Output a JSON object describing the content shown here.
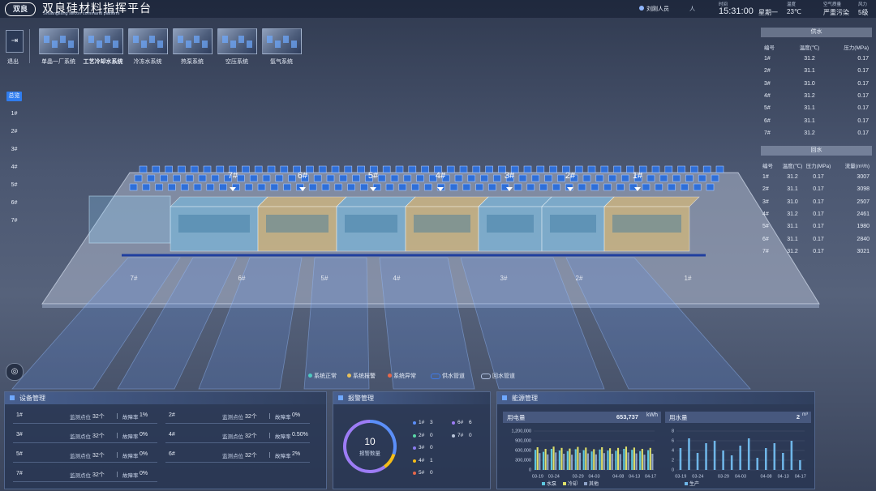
{
  "header": {
    "logo": "双良",
    "title": "双良硅材料指挥平台",
    "subtitle": "Shuangliang silicon command platform",
    "user": "刘刚人员",
    "user_suffix": "人",
    "time_label": "时间",
    "time": "15:31:00",
    "weekday": "星期一",
    "temp_label": "温度",
    "temp": "23℃",
    "air_label": "空气质量",
    "air": "严重污染",
    "wind_label": "风力",
    "wind": "5级"
  },
  "nav": {
    "exit": "退出",
    "systems": [
      "单晶一厂系统",
      "工艺冷却水系统",
      "冷冻水系统",
      "热泵系统",
      "空压系统",
      "氩气系统"
    ],
    "tabs": [
      "总览",
      "1#",
      "2#",
      "3#",
      "4#",
      "5#",
      "6#",
      "7#"
    ]
  },
  "supply": {
    "title": "供水",
    "columns": [
      "编号",
      "温度(℃)",
      "压力(MPa)"
    ],
    "rows": [
      [
        "1#",
        "31.2",
        "0.17"
      ],
      [
        "2#",
        "31.1",
        "0.17"
      ],
      [
        "3#",
        "31.0",
        "0.17"
      ],
      [
        "4#",
        "31.2",
        "0.17"
      ],
      [
        "5#",
        "31.1",
        "0.17"
      ],
      [
        "6#",
        "31.1",
        "0.17"
      ],
      [
        "7#",
        "31.2",
        "0.17"
      ]
    ]
  },
  "return": {
    "title": "回水",
    "columns": [
      "编号",
      "温度(℃)",
      "压力(MPa)",
      "流量(m³/h)"
    ],
    "rows": [
      [
        "1#",
        "31.2",
        "0.17",
        "3007"
      ],
      [
        "2#",
        "31.1",
        "0.17",
        "3098"
      ],
      [
        "3#",
        "31.0",
        "0.17",
        "2507"
      ],
      [
        "4#",
        "31.2",
        "0.17",
        "2461"
      ],
      [
        "5#",
        "31.1",
        "0.17",
        "1980"
      ],
      [
        "6#",
        "31.1",
        "0.17",
        "2840"
      ],
      [
        "7#",
        "31.2",
        "0.17",
        "3021"
      ]
    ]
  },
  "scene": {
    "top_labels": [
      "7#",
      "6#",
      "5#",
      "4#",
      "3#",
      "2#",
      "1#"
    ],
    "bottom_labels": [
      "7#",
      "6#",
      "5#",
      "4#",
      "3#",
      "2#",
      "1#"
    ]
  },
  "legend": [
    "系统正常",
    "系统报警",
    "系统异常",
    "供水管道",
    "回水管道"
  ],
  "equipment": {
    "title": "设备管理",
    "rows": [
      {
        "name": "1#",
        "points_label": "监测点位",
        "points": "32个",
        "rate_label": "故障率",
        "rate": "1%"
      },
      {
        "name": "2#",
        "points_label": "监测点位",
        "points": "32个",
        "rate_label": "故障率",
        "rate": "0%"
      },
      {
        "name": "3#",
        "points_label": "监测点位",
        "points": "32个",
        "rate_label": "故障率",
        "rate": "0%"
      },
      {
        "name": "4#",
        "points_label": "监测点位",
        "points": "32个",
        "rate_label": "故障率",
        "rate": "0.50%"
      },
      {
        "name": "5#",
        "points_label": "监测点位",
        "points": "32个",
        "rate_label": "故障率",
        "rate": "0%"
      },
      {
        "name": "6#",
        "points_label": "监测点位",
        "points": "32个",
        "rate_label": "故障率",
        "rate": "2%"
      },
      {
        "name": "7#",
        "points_label": "监测点位",
        "points": "32个",
        "rate_label": "故障率",
        "rate": "0%"
      }
    ]
  },
  "alarm": {
    "title": "报警管理",
    "total": 10,
    "total_label": "报警数量",
    "items": [
      {
        "name": "1#",
        "value": 3,
        "color": "#5b8ff9"
      },
      {
        "name": "2#",
        "value": 0,
        "color": "#5ad8a6"
      },
      {
        "name": "3#",
        "value": 0,
        "color": "#8a7cf0"
      },
      {
        "name": "4#",
        "value": 1,
        "color": "#f6bd16"
      },
      {
        "name": "5#",
        "value": 0,
        "color": "#e8684a"
      },
      {
        "name": "6#",
        "value": 6,
        "color": "#9d7cf5"
      },
      {
        "name": "7#",
        "value": 0,
        "color": "#b8c4d8"
      }
    ]
  },
  "energy": {
    "title": "能源管理",
    "power": {
      "type": "bar",
      "label": "用电量",
      "total": "653,737",
      "unit": "kWh",
      "categories": [
        "03-19",
        null,
        "03-24",
        null,
        null,
        "03-29",
        null,
        "04-03",
        null,
        null,
        "04-08",
        null,
        "04-13",
        null,
        "04-17"
      ],
      "ylim": [
        0,
        1200000
      ],
      "yticks": [
        0,
        {
          "value": 300000,
          "label": "300,000"
        },
        {
          "value": 600000,
          "label": "600,000"
        },
        {
          "value": 900000,
          "label": "900,000"
        },
        {
          "value": 1200000,
          "label": "1,200,000"
        }
      ],
      "series": [
        {
          "name": "水泵",
          "color": "#5ec8e0",
          "values": [
            620000,
            560000,
            650000,
            600000,
            580000,
            640000,
            610000,
            570000,
            630000,
            600000,
            590000,
            650000,
            620000,
            580000,
            610000
          ]
        },
        {
          "name": "冷却",
          "color": "#dfe06a",
          "values": [
            700000,
            650000,
            720000,
            680000,
            660000,
            710000,
            690000,
            640000,
            700000,
            670000,
            680000,
            720000,
            690000,
            650000,
            680000
          ]
        },
        {
          "name": "其他",
          "color": "#8fa3c8",
          "values": [
            520000,
            480000,
            540000,
            500000,
            470000,
            530000,
            510000,
            480000,
            520000,
            500000,
            490000,
            540000,
            510000,
            470000,
            500000
          ]
        }
      ]
    },
    "water": {
      "type": "bar",
      "label": "用水量",
      "total": "2",
      "unit": "m³",
      "categories": [
        "03-19",
        null,
        "03-24",
        null,
        null,
        "03-29",
        null,
        "04-03",
        null,
        null,
        "04-08",
        null,
        "04-13",
        null,
        "04-17"
      ],
      "ylim": [
        0,
        8
      ],
      "yticks": [
        0,
        2,
        4,
        6,
        8
      ],
      "series": [
        {
          "name": "生产",
          "color": "#6fb6e8",
          "values": [
            4.5,
            6.5,
            3.5,
            5.5,
            6,
            4,
            3,
            5,
            6.5,
            2.5,
            4.5,
            5.5,
            3.5,
            6,
            2
          ]
        }
      ]
    }
  }
}
